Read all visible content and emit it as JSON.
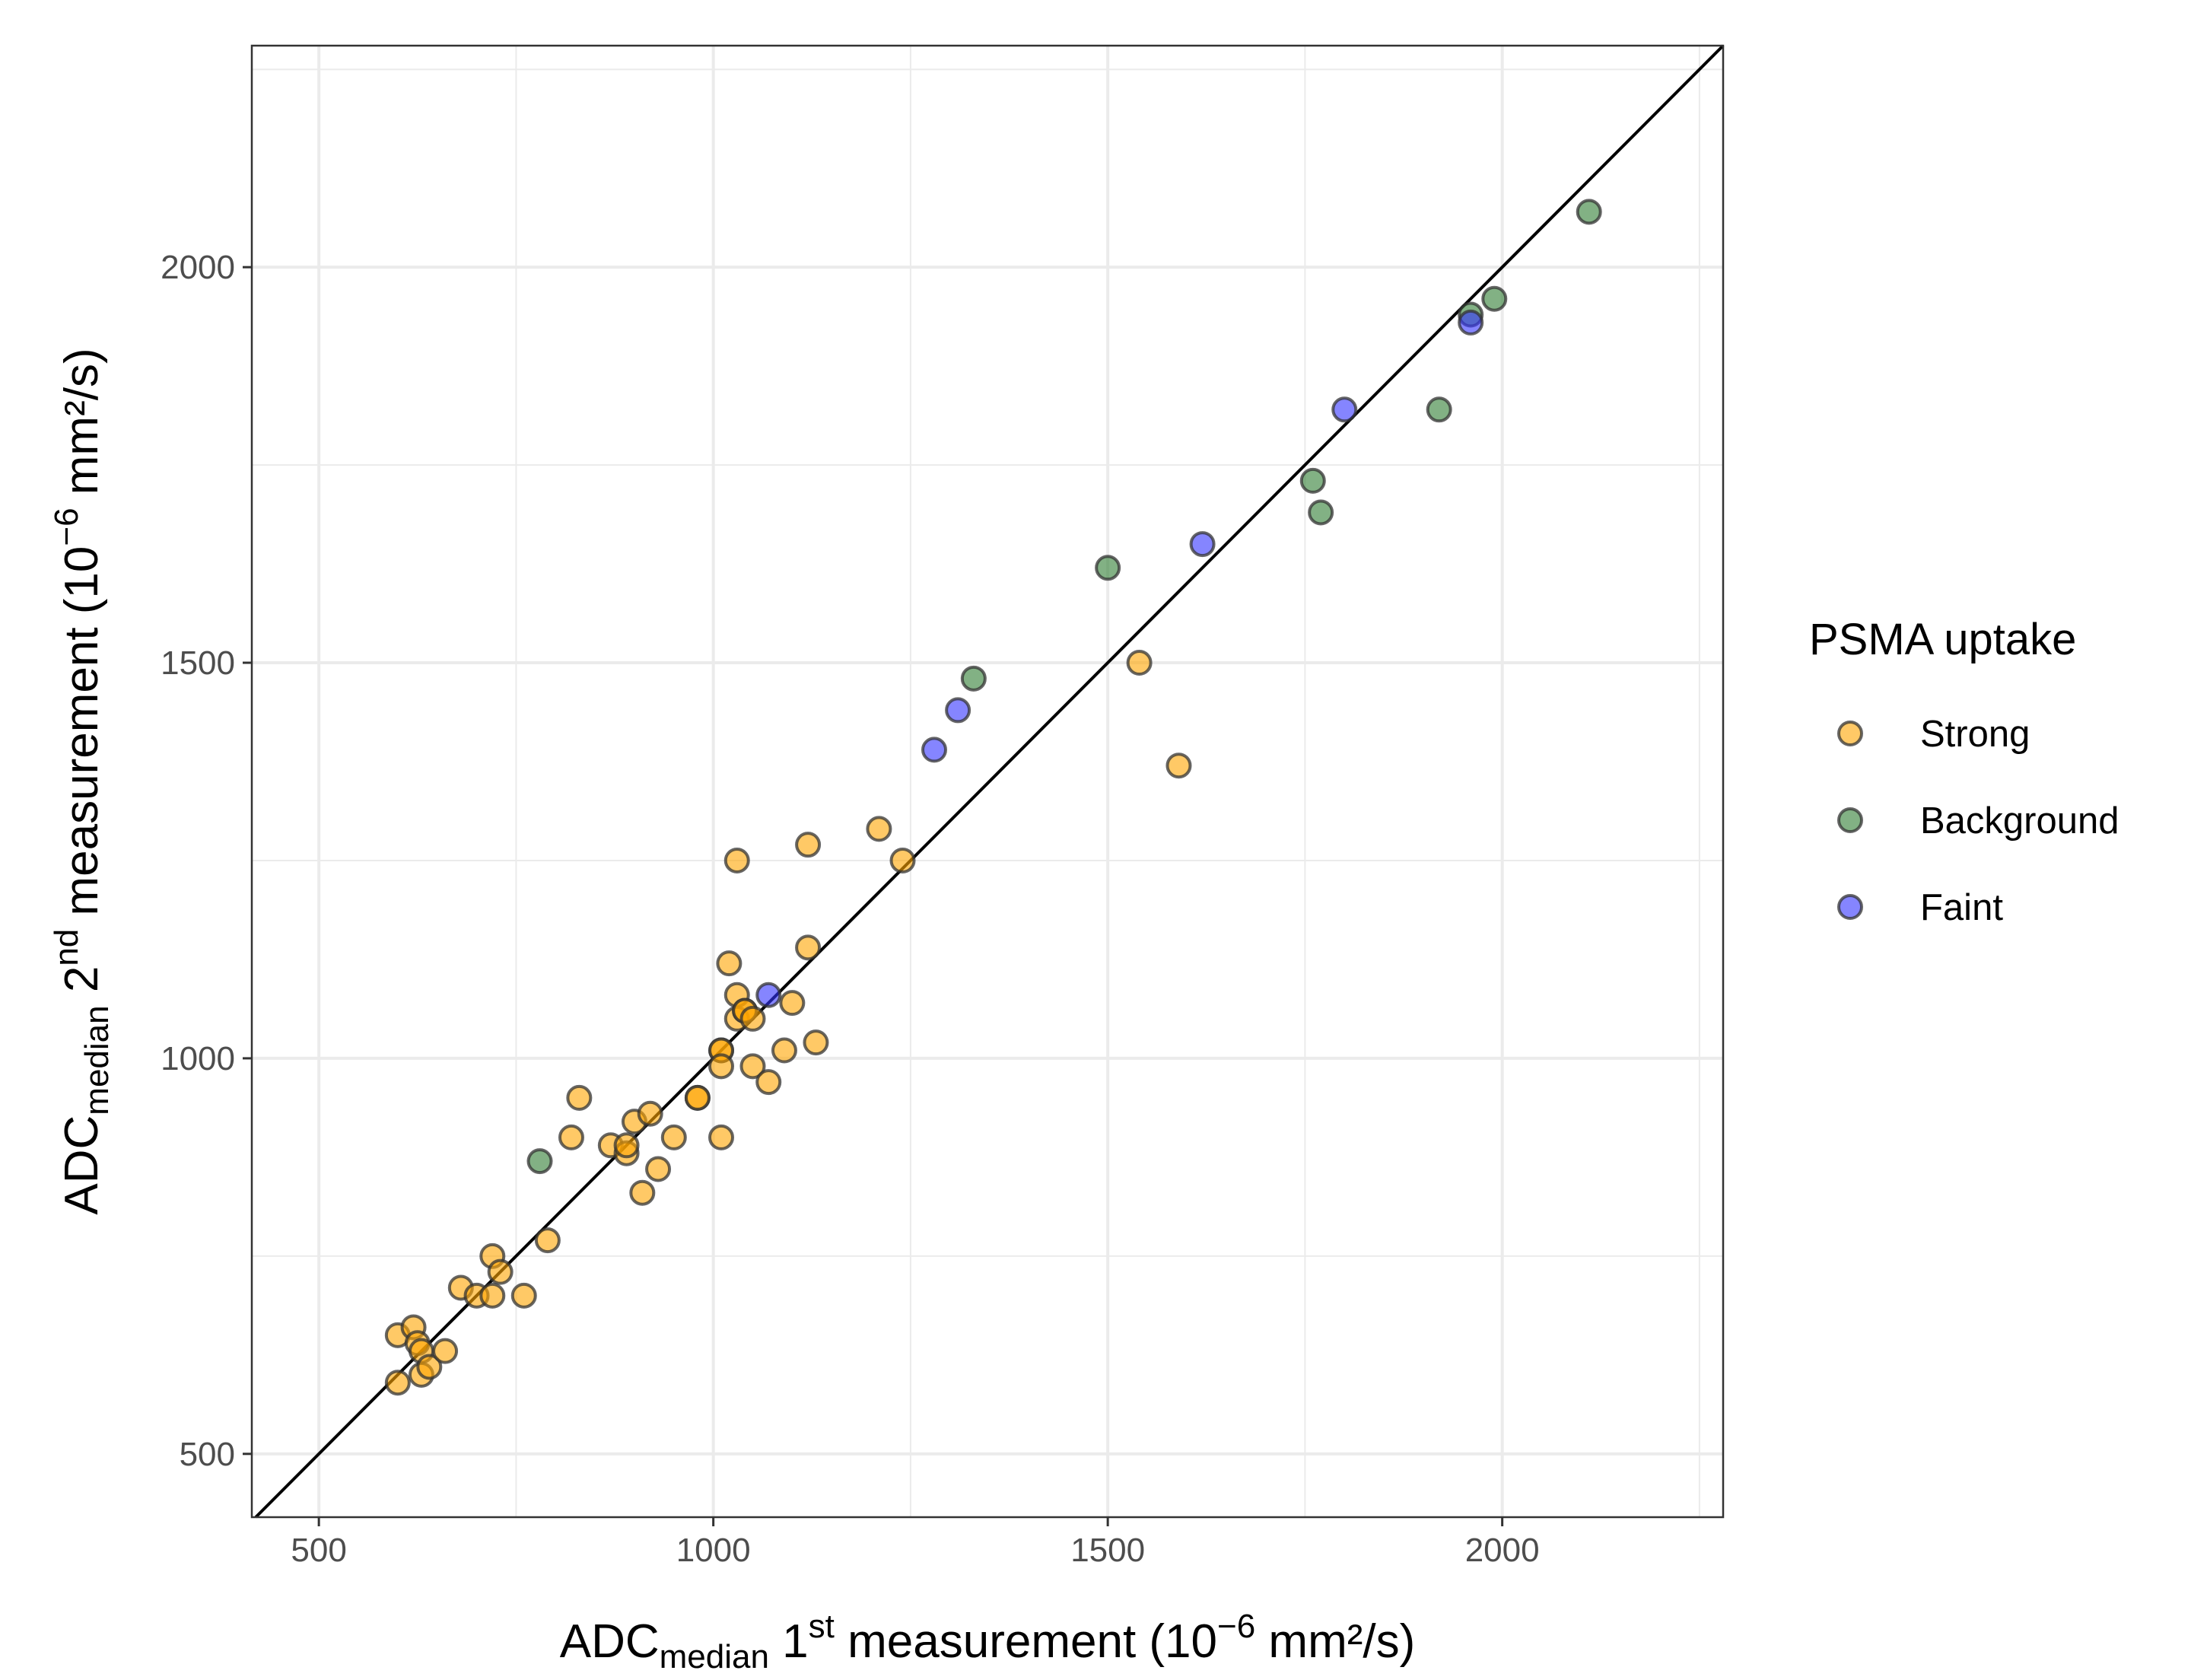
{
  "chart_data": {
    "type": "scatter",
    "title": "",
    "xlabel": {
      "main": "ADC",
      "sub": "median",
      "mid": " 1",
      "sup": "st",
      "rest": " measurement (10",
      "sup2": "−6",
      "rest2": " mm²/s)"
    },
    "ylabel": {
      "main": "ADC",
      "sub": "median",
      "mid": " 2",
      "sup": "nd",
      "rest": " measurement (10",
      "sup2": "−6",
      "rest2": " mm²/s)"
    },
    "xlim": [
      415,
      2280
    ],
    "ylim": [
      420,
      2280
    ],
    "x_ticks": [
      500,
      1000,
      1500,
      2000
    ],
    "x_tick_labels": [
      "500",
      "1000",
      "1500",
      "2000"
    ],
    "y_ticks": [
      500,
      1000,
      1500,
      2000
    ],
    "y_tick_labels": [
      "500",
      "1000",
      "1500",
      "2000"
    ],
    "minor_grid": [
      750,
      1250,
      1750,
      2250
    ],
    "grid": true,
    "reference_line": "identity",
    "legend": {
      "title": "PSMA uptake",
      "position": "right"
    },
    "series": [
      {
        "name": "Strong",
        "color": "#FFA500",
        "points": [
          [
            600,
            590
          ],
          [
            600,
            650
          ],
          [
            620,
            660
          ],
          [
            625,
            640
          ],
          [
            630,
            600
          ],
          [
            630,
            630
          ],
          [
            640,
            610
          ],
          [
            660,
            630
          ],
          [
            680,
            710
          ],
          [
            700,
            700
          ],
          [
            720,
            700
          ],
          [
            720,
            750
          ],
          [
            730,
            730
          ],
          [
            760,
            700
          ],
          [
            790,
            770
          ],
          [
            820,
            900
          ],
          [
            830,
            950
          ],
          [
            870,
            890
          ],
          [
            890,
            880
          ],
          [
            890,
            890
          ],
          [
            900,
            920
          ],
          [
            910,
            830
          ],
          [
            920,
            930
          ],
          [
            930,
            860
          ],
          [
            950,
            900
          ],
          [
            980,
            950
          ],
          [
            980,
            950
          ],
          [
            1010,
            1010
          ],
          [
            1010,
            1010
          ],
          [
            1010,
            990
          ],
          [
            1010,
            900
          ],
          [
            1020,
            1120
          ],
          [
            1030,
            1250
          ],
          [
            1030,
            1080
          ],
          [
            1030,
            1050
          ],
          [
            1040,
            1060
          ],
          [
            1040,
            1060
          ],
          [
            1050,
            1050
          ],
          [
            1050,
            990
          ],
          [
            1070,
            970
          ],
          [
            1090,
            1010
          ],
          [
            1100,
            1070
          ],
          [
            1120,
            1140
          ],
          [
            1120,
            1270
          ],
          [
            1130,
            1020
          ],
          [
            1210,
            1290
          ],
          [
            1240,
            1250
          ],
          [
            1540,
            1500
          ],
          [
            1590,
            1370
          ]
        ]
      },
      {
        "name": "Background",
        "color": "#2E7D32",
        "points": [
          [
            780,
            870
          ],
          [
            1330,
            1480
          ],
          [
            1500,
            1620
          ],
          [
            1760,
            1730
          ],
          [
            1770,
            1690
          ],
          [
            1920,
            1820
          ],
          [
            1960,
            1940
          ],
          [
            1990,
            1960
          ],
          [
            2110,
            2070
          ]
        ]
      },
      {
        "name": "Faint",
        "color": "#3333FF",
        "points": [
          [
            1070,
            1080
          ],
          [
            1280,
            1390
          ],
          [
            1310,
            1440
          ],
          [
            1620,
            1650
          ],
          [
            1800,
            1820
          ],
          [
            1960,
            1930
          ]
        ]
      }
    ]
  }
}
